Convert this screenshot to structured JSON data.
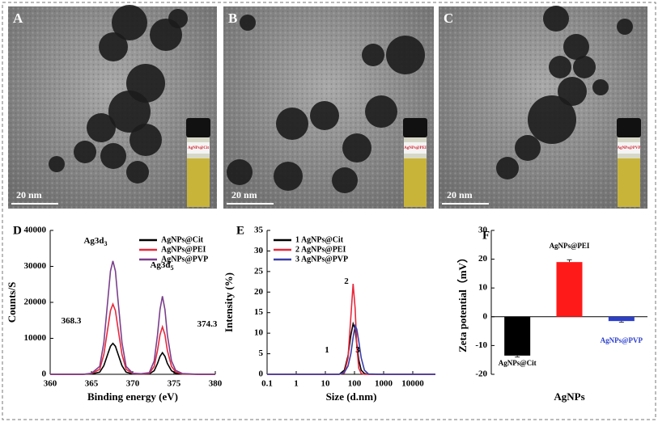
{
  "images": [
    {
      "label": "A",
      "scale": "20 nm",
      "vial": "AgNPs@Cit"
    },
    {
      "label": "B",
      "scale": "20 nm",
      "vial": "AgNPs@PEI"
    },
    {
      "label": "C",
      "scale": "20 nm",
      "vial": "AgNPs@PVP"
    }
  ],
  "chart_data": [
    {
      "type": "line",
      "panel": "D",
      "xlabel": "Binding energy (eV)",
      "ylabel": "Counts/S",
      "x": [
        360,
        362,
        364,
        365,
        366,
        366.5,
        367,
        367.3,
        367.6,
        367.9,
        368.2,
        368.7,
        369.2,
        370,
        371,
        372,
        372.6,
        373,
        373.3,
        373.6,
        373.9,
        374.2,
        374.7,
        375.2,
        376,
        378,
        380
      ],
      "series": [
        {
          "name": "AgNPs@Cit",
          "color": "#000000",
          "values": [
            0,
            0,
            0,
            90,
            600,
            2400,
            5800,
            7800,
            8600,
            7800,
            5800,
            2400,
            600,
            90,
            40,
            120,
            1000,
            3000,
            5000,
            6000,
            5000,
            3000,
            1000,
            300,
            60,
            0,
            0
          ]
        },
        {
          "name": "AgNPs@PEI",
          "color": "#e8283c",
          "values": [
            0,
            0,
            0,
            200,
            1400,
            5500,
            13100,
            17700,
            19500,
            17700,
            13100,
            5500,
            1400,
            200,
            100,
            260,
            2200,
            6600,
            11000,
            13200,
            11000,
            6600,
            2200,
            660,
            130,
            0,
            0
          ]
        },
        {
          "name": "AgNPs@PVP",
          "color": "#7b3f8c",
          "values": [
            0,
            0,
            0,
            300,
            2200,
            8800,
            21100,
            28700,
            31500,
            28700,
            21100,
            8800,
            2200,
            300,
            150,
            430,
            3700,
            10900,
            18000,
            21700,
            18000,
            10900,
            3700,
            1100,
            220,
            0,
            0
          ]
        }
      ],
      "xlim": [
        360,
        380
      ],
      "xticks": [
        360,
        365,
        370,
        375,
        380
      ],
      "ylim": [
        0,
        40000
      ],
      "yticks": [
        0,
        10000,
        20000,
        30000,
        40000
      ],
      "annotations": [
        {
          "text": "Ag3d",
          "sub": "3"
        },
        {
          "text": "Ag3d",
          "sub": "5"
        },
        {
          "text": "368.3"
        },
        {
          "text": "374.3"
        }
      ],
      "legend": "upper right"
    },
    {
      "type": "line",
      "panel": "E",
      "xlabel": "Size (d.nm)",
      "ylabel": "Intensity (%)",
      "log_x": true,
      "x": [
        0.1,
        1,
        10,
        30,
        45,
        60,
        75,
        90,
        105,
        120,
        140,
        170,
        220,
        300,
        1000,
        10000,
        60000
      ],
      "series": [
        {
          "name": "1  AgNPs@Cit",
          "color": "#000000",
          "values": [
            0,
            0,
            0,
            0,
            1,
            4.5,
            9.5,
            12.3,
            11,
            7.5,
            3.5,
            1,
            0.2,
            0,
            0,
            0,
            0
          ]
        },
        {
          "name": "2  AgNPs@PEI",
          "color": "#e8283c",
          "values": [
            0,
            0,
            0,
            0,
            0.3,
            4,
            14,
            22,
            16,
            7,
            1.5,
            0.2,
            0,
            0,
            0,
            0,
            0
          ]
        },
        {
          "name": "3  AgNPs@PVP",
          "color": "#3a3fa8",
          "values": [
            0,
            0,
            0,
            0,
            0.5,
            2,
            5,
            9,
            11.8,
            11,
            8,
            4,
            1,
            0.1,
            0,
            0,
            0
          ]
        }
      ],
      "xlim": [
        0.1,
        60000
      ],
      "xticks": [
        0.1,
        1,
        10,
        100,
        1000,
        10000
      ],
      "ylim": [
        0,
        35
      ],
      "yticks": [
        0,
        5,
        10,
        15,
        20,
        25,
        30,
        35
      ],
      "annotations": [
        {
          "text": "1"
        },
        {
          "text": "2"
        },
        {
          "text": "3"
        }
      ],
      "legend": "upper left"
    },
    {
      "type": "bar",
      "panel": "F",
      "xlabel": "AgNPs",
      "ylabel": "Zeta potential（mV）",
      "categories": [
        "AgNPs@Cit",
        "AgNPs@PEI",
        "AgNPs@PVP"
      ],
      "values": [
        -13.5,
        19,
        -1.5
      ],
      "errors": [
        0.5,
        0.8,
        0.4
      ],
      "colors": [
        "#000000",
        "#ff1a1a",
        "#2b3fcc"
      ],
      "ylim": [
        -20,
        30
      ],
      "yticks": [
        -20,
        -10,
        0,
        10,
        20,
        30
      ]
    }
  ]
}
